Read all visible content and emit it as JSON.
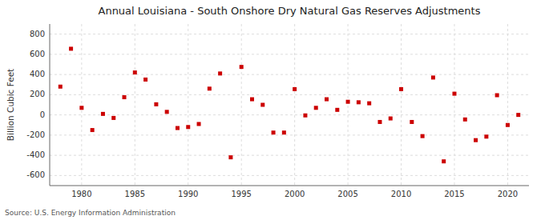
{
  "chart_data": {
    "type": "scatter",
    "title": "Annual Louisiana - South Onshore Dry Natural Gas Reserves Adjustments",
    "y_label": "Billion Cubic Feet",
    "source": "Source: U.S. Energy Information Administration",
    "x": [
      1978,
      1979,
      1980,
      1981,
      1982,
      1983,
      1984,
      1985,
      1986,
      1987,
      1988,
      1989,
      1990,
      1991,
      1992,
      1993,
      1994,
      1995,
      1996,
      1997,
      1998,
      1999,
      2000,
      2001,
      2002,
      2003,
      2004,
      2005,
      2006,
      2007,
      2008,
      2009,
      2010,
      2011,
      2012,
      2013,
      2014,
      2015,
      2016,
      2017,
      2018,
      2019,
      2020,
      2021
    ],
    "values": [
      280,
      655,
      70,
      -150,
      10,
      -30,
      175,
      420,
      350,
      105,
      30,
      -130,
      -120,
      -90,
      260,
      410,
      -420,
      475,
      155,
      100,
      -175,
      -175,
      255,
      -5,
      70,
      155,
      50,
      130,
      125,
      115,
      -70,
      -35,
      255,
      -70,
      -210,
      370,
      -460,
      210,
      -45,
      -250,
      -215,
      195,
      -100,
      0
    ],
    "color": "#cc0000",
    "marker": "square",
    "xlim": [
      1977,
      2022
    ],
    "ylim": [
      -700,
      900
    ],
    "xticks": [
      1980,
      1985,
      1990,
      1995,
      2000,
      2005,
      2010,
      2015,
      2020
    ],
    "yticks": [
      -600,
      -400,
      -200,
      0,
      200,
      400,
      600,
      800
    ],
    "grid": true
  }
}
